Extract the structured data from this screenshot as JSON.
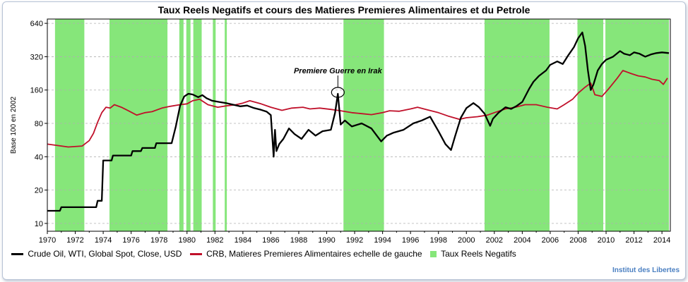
{
  "colors": {
    "oil": "#000000",
    "crb": "#c0102a",
    "band": "#86e67a"
  },
  "chart_data": {
    "type": "line",
    "title": "Taux Reels Negatifs et cours des Matieres Premieres Alimentaires et du Petrole",
    "ylabel": "Base 100 en 2002",
    "xlabel": "",
    "y_scale": "log2",
    "ylim": [
      8.5,
      700
    ],
    "xlim": [
      1970,
      2014.6
    ],
    "y_ticks": [
      640,
      320,
      160,
      80,
      40,
      20,
      10
    ],
    "x_ticks": [
      1970,
      1972,
      1974,
      1976,
      1978,
      1980,
      1982,
      1984,
      1986,
      1988,
      1990,
      1992,
      1994,
      1996,
      1998,
      2000,
      2002,
      2004,
      2006,
      2008,
      2010,
      2012,
      2014
    ],
    "grid": "horizontal",
    "legend_position": "bottom",
    "annotation": {
      "text": "Premiere Guerre en Irak",
      "x": 1990.8,
      "y": 148
    },
    "negative_real_rate_periods": [
      [
        1970.55,
        1972.65
      ],
      [
        1974.45,
        1978.6
      ],
      [
        1979.45,
        1979.75
      ],
      [
        1979.95,
        1980.25
      ],
      [
        1980.45,
        1981.05
      ],
      [
        1981.85,
        1982.05
      ],
      [
        1982.7,
        1982.85
      ],
      [
        1991.2,
        1994.1
      ],
      [
        2001.3,
        2005.95
      ],
      [
        2007.95,
        2009.8
      ],
      [
        2009.95,
        2014.5
      ]
    ],
    "series": [
      {
        "name": "Crude Oil, WTI, Global Spot, Close, USD",
        "x": [
          1970.0,
          1970.9,
          1971.0,
          1973.5,
          1973.6,
          1973.9,
          1974.0,
          1974.6,
          1974.7,
          1976.0,
          1976.1,
          1976.7,
          1976.8,
          1977.7,
          1977.8,
          1978.9,
          1979.2,
          1979.5,
          1979.8,
          1980.1,
          1980.4,
          1980.8,
          1981.1,
          1981.4,
          1981.8,
          1982.3,
          1982.8,
          1983.3,
          1983.8,
          1984.3,
          1984.8,
          1985.3,
          1985.7,
          1986.0,
          1986.2,
          1986.3,
          1986.4,
          1986.6,
          1986.9,
          1987.3,
          1987.7,
          1988.2,
          1988.7,
          1989.2,
          1989.7,
          1990.3,
          1990.6,
          1990.8,
          1991.0,
          1991.3,
          1991.8,
          1992.5,
          1993.2,
          1993.9,
          1994.3,
          1994.8,
          1995.5,
          1996.2,
          1996.8,
          1997.4,
          1998.0,
          1998.5,
          1998.9,
          1999.2,
          1999.6,
          2000.0,
          2000.5,
          2000.9,
          2001.3,
          2001.7,
          2001.9,
          2002.3,
          2002.8,
          2003.2,
          2003.6,
          2004.0,
          2004.5,
          2004.8,
          2005.2,
          2005.7,
          2006.0,
          2006.5,
          2006.9,
          2007.3,
          2007.7,
          2008.0,
          2008.3,
          2008.5,
          2008.7,
          2008.9,
          2009.1,
          2009.4,
          2009.7,
          2010.0,
          2010.5,
          2011.0,
          2011.3,
          2011.7,
          2012.0,
          2012.4,
          2012.8,
          2013.2,
          2013.6,
          2014.0,
          2014.5
        ],
        "values": [
          13,
          13,
          14,
          14,
          16,
          16,
          37,
          37,
          41,
          41,
          45,
          45,
          48,
          48,
          53,
          53,
          75,
          115,
          140,
          148,
          146,
          138,
          144,
          135,
          128,
          125,
          122,
          118,
          114,
          116,
          110,
          106,
          102,
          95,
          40,
          70,
          45,
          52,
          58,
          72,
          64,
          58,
          70,
          62,
          68,
          70,
          100,
          148,
          78,
          85,
          75,
          80,
          72,
          55,
          62,
          66,
          70,
          80,
          85,
          92,
          68,
          52,
          46,
          62,
          90,
          110,
          122,
          112,
          98,
          76,
          88,
          100,
          112,
          108,
          115,
          125,
          165,
          190,
          215,
          240,
          270,
          290,
          275,
          330,
          390,
          470,
          530,
          400,
          240,
          160,
          180,
          240,
          275,
          300,
          320,
          360,
          340,
          330,
          350,
          340,
          320,
          335,
          345,
          350,
          345
        ]
      },
      {
        "name": "CRB, Matieres Premieres Alimentaires echelle de gauche",
        "x": [
          1970.0,
          1971.0,
          1971.5,
          1972.5,
          1973.0,
          1973.3,
          1973.6,
          1973.9,
          1974.2,
          1974.5,
          1974.8,
          1975.3,
          1975.8,
          1976.4,
          1977.0,
          1977.5,
          1978.2,
          1978.8,
          1979.5,
          1980.0,
          1980.4,
          1980.9,
          1981.5,
          1982.2,
          1982.8,
          1983.5,
          1984.0,
          1984.5,
          1985.3,
          1986.0,
          1986.8,
          1987.5,
          1988.3,
          1988.8,
          1989.5,
          1990.3,
          1991.0,
          1991.8,
          1992.5,
          1993.2,
          1994.0,
          1994.5,
          1995.2,
          1996.0,
          1996.5,
          1997.2,
          1998.0,
          1998.7,
          1999.5,
          2000.0,
          2000.8,
          2001.5,
          2002.0,
          2002.8,
          2003.5,
          2004.2,
          2005.0,
          2005.8,
          2006.5,
          2007.0,
          2007.6,
          2008.0,
          2008.5,
          2008.9,
          2009.2,
          2009.7,
          2010.2,
          2010.8,
          2011.2,
          2011.8,
          2012.3,
          2012.8,
          2013.3,
          2013.8,
          2014.1,
          2014.4
        ],
        "values": [
          52,
          50,
          49,
          50,
          56,
          65,
          82,
          100,
          112,
          110,
          118,
          112,
          104,
          95,
          100,
          102,
          110,
          114,
          118,
          120,
          128,
          132,
          118,
          112,
          115,
          118,
          122,
          128,
          120,
          112,
          105,
          110,
          112,
          108,
          110,
          107,
          104,
          100,
          98,
          96,
          100,
          104,
          103,
          108,
          112,
          106,
          100,
          93,
          87,
          90,
          92,
          95,
          100,
          108,
          112,
          118,
          118,
          112,
          108,
          118,
          132,
          150,
          170,
          185,
          145,
          140,
          165,
          205,
          240,
          225,
          215,
          210,
          200,
          195,
          180,
          205
        ]
      }
    ]
  },
  "legend": [
    {
      "label": "Crude Oil, WTI, Global Spot, Close, USD",
      "kind": "line",
      "color": "#000000"
    },
    {
      "label": "CRB, Matieres Premieres Alimentaires echelle de gauche",
      "kind": "line",
      "color": "#c0102a"
    },
    {
      "label": "Taux Reels Negatifs",
      "kind": "box",
      "color": "#86e67a"
    }
  ],
  "source": "Institut des Libertes"
}
